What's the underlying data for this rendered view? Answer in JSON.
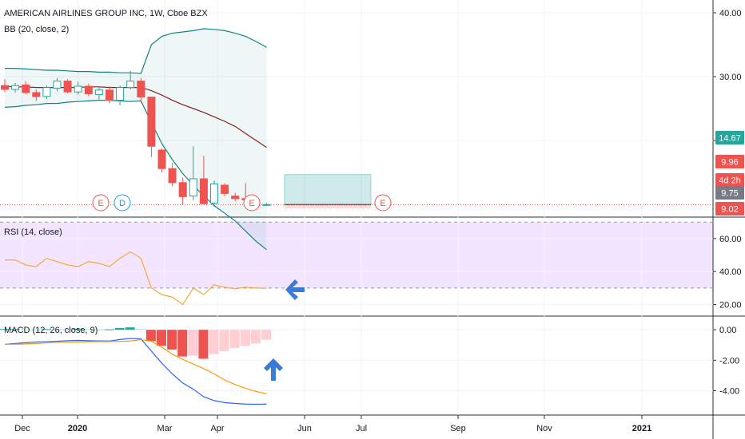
{
  "header": {
    "title": "AMERICAN AIRLINES GROUP INC, 1W, Cboe BZX",
    "bb_label": "BB (20, close, 2)",
    "rsi_label": "RSI (14, close)",
    "macd_label": "MACD (12, 26, close, 9)"
  },
  "colors": {
    "up": "#26a69a",
    "down": "#ef5350",
    "bb_basis": "#872323",
    "bb_band": "#138484",
    "rsi_line": "#f7a935",
    "macd_line": "#2962ff",
    "signal_line": "#ff9800",
    "rsi_fill": "#f3e5ff",
    "arrow": "#3a7bd5"
  },
  "price_tags": [
    {
      "text": "14.67",
      "bg": "#26a69a"
    },
    {
      "text": "9.96",
      "bg": "#ef5350"
    },
    {
      "text": "4d 2h",
      "bg": "#ef5350"
    },
    {
      "text": "9.75",
      "bg": "#787b86"
    },
    {
      "text": "9.02",
      "bg": "#ef5350"
    }
  ],
  "events": [
    {
      "text": "E",
      "color": "#ef5350"
    },
    {
      "text": "D",
      "color": "#2196f3"
    },
    {
      "text": "E",
      "color": "#ef5350"
    },
    {
      "text": "E",
      "color": "#ef5350"
    }
  ],
  "chart_data": [
    {
      "type": "candlestick",
      "title": "AMERICAN AIRLINES GROUP INC, 1W, Cboe BZX",
      "y_ticks": [
        "40.00",
        "30.00",
        "20.00"
      ],
      "x_ticks": [
        "Dec",
        "2020",
        "Mar",
        "Apr",
        "Jun",
        "Jul",
        "Sep",
        "Nov",
        "2021"
      ],
      "ylim": [
        8,
        42
      ],
      "candles": [
        {
          "o": 28.6,
          "h": 29.6,
          "l": 27.6,
          "c": 28.0
        },
        {
          "o": 28.0,
          "h": 29.0,
          "l": 27.5,
          "c": 28.6
        },
        {
          "o": 28.7,
          "h": 29.3,
          "l": 27.2,
          "c": 27.5
        },
        {
          "o": 27.5,
          "h": 28.0,
          "l": 26.2,
          "c": 26.9
        },
        {
          "o": 26.9,
          "h": 28.6,
          "l": 26.5,
          "c": 28.3
        },
        {
          "o": 28.2,
          "h": 29.8,
          "l": 27.7,
          "c": 29.3
        },
        {
          "o": 29.3,
          "h": 29.6,
          "l": 27.4,
          "c": 27.6
        },
        {
          "o": 27.6,
          "h": 29.2,
          "l": 27.2,
          "c": 28.5
        },
        {
          "o": 28.5,
          "h": 28.9,
          "l": 26.9,
          "c": 27.3
        },
        {
          "o": 27.2,
          "h": 28.4,
          "l": 26.4,
          "c": 27.9
        },
        {
          "o": 27.9,
          "h": 28.5,
          "l": 25.8,
          "c": 26.3
        },
        {
          "o": 26.3,
          "h": 28.6,
          "l": 25.5,
          "c": 28.3
        },
        {
          "o": 28.3,
          "h": 30.9,
          "l": 28.0,
          "c": 29.3
        },
        {
          "o": 29.3,
          "h": 29.8,
          "l": 25.9,
          "c": 26.8
        },
        {
          "o": 26.8,
          "h": 26.8,
          "l": 17.4,
          "c": 19.1
        },
        {
          "o": 18.5,
          "h": 18.8,
          "l": 15.0,
          "c": 15.6
        },
        {
          "o": 15.6,
          "h": 16.5,
          "l": 12.8,
          "c": 13.4
        },
        {
          "o": 13.4,
          "h": 14.2,
          "l": 10.0,
          "c": 11.2
        },
        {
          "o": 11.3,
          "h": 19.1,
          "l": 10.6,
          "c": 14.0
        },
        {
          "o": 14.0,
          "h": 17.6,
          "l": 10.0,
          "c": 10.1
        },
        {
          "o": 10.2,
          "h": 13.7,
          "l": 9.6,
          "c": 13.2
        },
        {
          "o": 13.0,
          "h": 13.3,
          "l": 11.3,
          "c": 11.7
        },
        {
          "o": 11.3,
          "h": 11.8,
          "l": 10.5,
          "c": 10.9
        },
        {
          "o": 10.9,
          "h": 13.3,
          "l": 10.5,
          "c": 10.7
        },
        {
          "o": 10.1,
          "h": 10.6,
          "l": 9.4,
          "c": 9.8
        },
        {
          "o": 9.96,
          "h": 10.2,
          "l": 9.9,
          "c": 9.96
        }
      ],
      "bb_upper": [
        31.3,
        31.3,
        31.2,
        31.1,
        31.0,
        31.0,
        30.9,
        30.8,
        30.8,
        30.7,
        30.7,
        30.6,
        30.6,
        30.5,
        35.0,
        36.3,
        36.8,
        37.0,
        37.2,
        37.5,
        37.4,
        37.2,
        36.8,
        36.3,
        35.5,
        34.6
      ],
      "bb_basis": [
        28.5,
        28.4,
        28.4,
        28.3,
        28.3,
        28.3,
        28.3,
        28.3,
        28.4,
        28.4,
        28.3,
        28.3,
        28.3,
        28.3,
        27.8,
        27.1,
        26.3,
        25.6,
        25.0,
        24.4,
        23.7,
        23.0,
        22.2,
        21.1,
        20.0,
        18.9
      ],
      "bb_lower": [
        25.2,
        25.3,
        25.5,
        25.6,
        25.8,
        25.8,
        26.0,
        26.1,
        26.2,
        26.3,
        26.3,
        26.2,
        26.1,
        26.2,
        22.8,
        19.5,
        17.0,
        14.8,
        13.0,
        11.3,
        9.8,
        8.6,
        7.4,
        5.8,
        4.2,
        2.9
      ],
      "forecast_box": {
        "top": 14.67,
        "bottom": 9.96
      }
    },
    {
      "type": "line",
      "title": "RSI (14, close)",
      "y_ticks": [
        "60.00",
        "40.00",
        "20.00"
      ],
      "ylim": [
        13,
        73
      ],
      "bands": {
        "upper": 70,
        "lower": 30
      },
      "values": [
        47.0,
        47.0,
        44.0,
        43.0,
        48.0,
        46.0,
        44.0,
        43.0,
        46.0,
        45.0,
        43.0,
        48.0,
        52.0,
        48.0,
        30.0,
        26.0,
        24.5,
        20.0,
        30.0,
        26.0,
        32.0,
        30.5,
        29.5,
        30.5,
        30.0,
        29.8
      ]
    },
    {
      "type": "bar",
      "title": "MACD (12, 26, close, 9)",
      "y_ticks": [
        "0.00",
        "-2.00",
        "-4.00"
      ],
      "ylim": [
        -5.6,
        0.9
      ],
      "histogram": [
        0.05,
        0.05,
        0.03,
        0.02,
        0.05,
        0.04,
        0.02,
        0.06,
        0.05,
        0.02,
        0.03,
        0.12,
        0.16,
        0.05,
        -0.75,
        -1.05,
        -1.3,
        -1.75,
        -1.7,
        -1.9,
        -1.6,
        -1.4,
        -1.2,
        -1.05,
        -0.9,
        -0.65
      ],
      "macd": [
        -0.95,
        -0.9,
        -0.85,
        -0.8,
        -0.78,
        -0.75,
        -0.72,
        -0.7,
        -0.72,
        -0.73,
        -0.74,
        -0.64,
        -0.57,
        -0.6,
        -1.4,
        -2.2,
        -2.9,
        -3.5,
        -3.9,
        -4.4,
        -4.65,
        -4.78,
        -4.84,
        -4.88,
        -4.89,
        -4.88
      ],
      "signal": [
        -0.95,
        -0.95,
        -0.93,
        -0.9,
        -0.86,
        -0.84,
        -0.82,
        -0.8,
        -0.78,
        -0.77,
        -0.77,
        -0.76,
        -0.74,
        -0.65,
        -0.75,
        -1.15,
        -1.6,
        -1.95,
        -2.25,
        -2.55,
        -2.9,
        -3.3,
        -3.6,
        -3.85,
        -4.05,
        -4.2
      ]
    }
  ]
}
